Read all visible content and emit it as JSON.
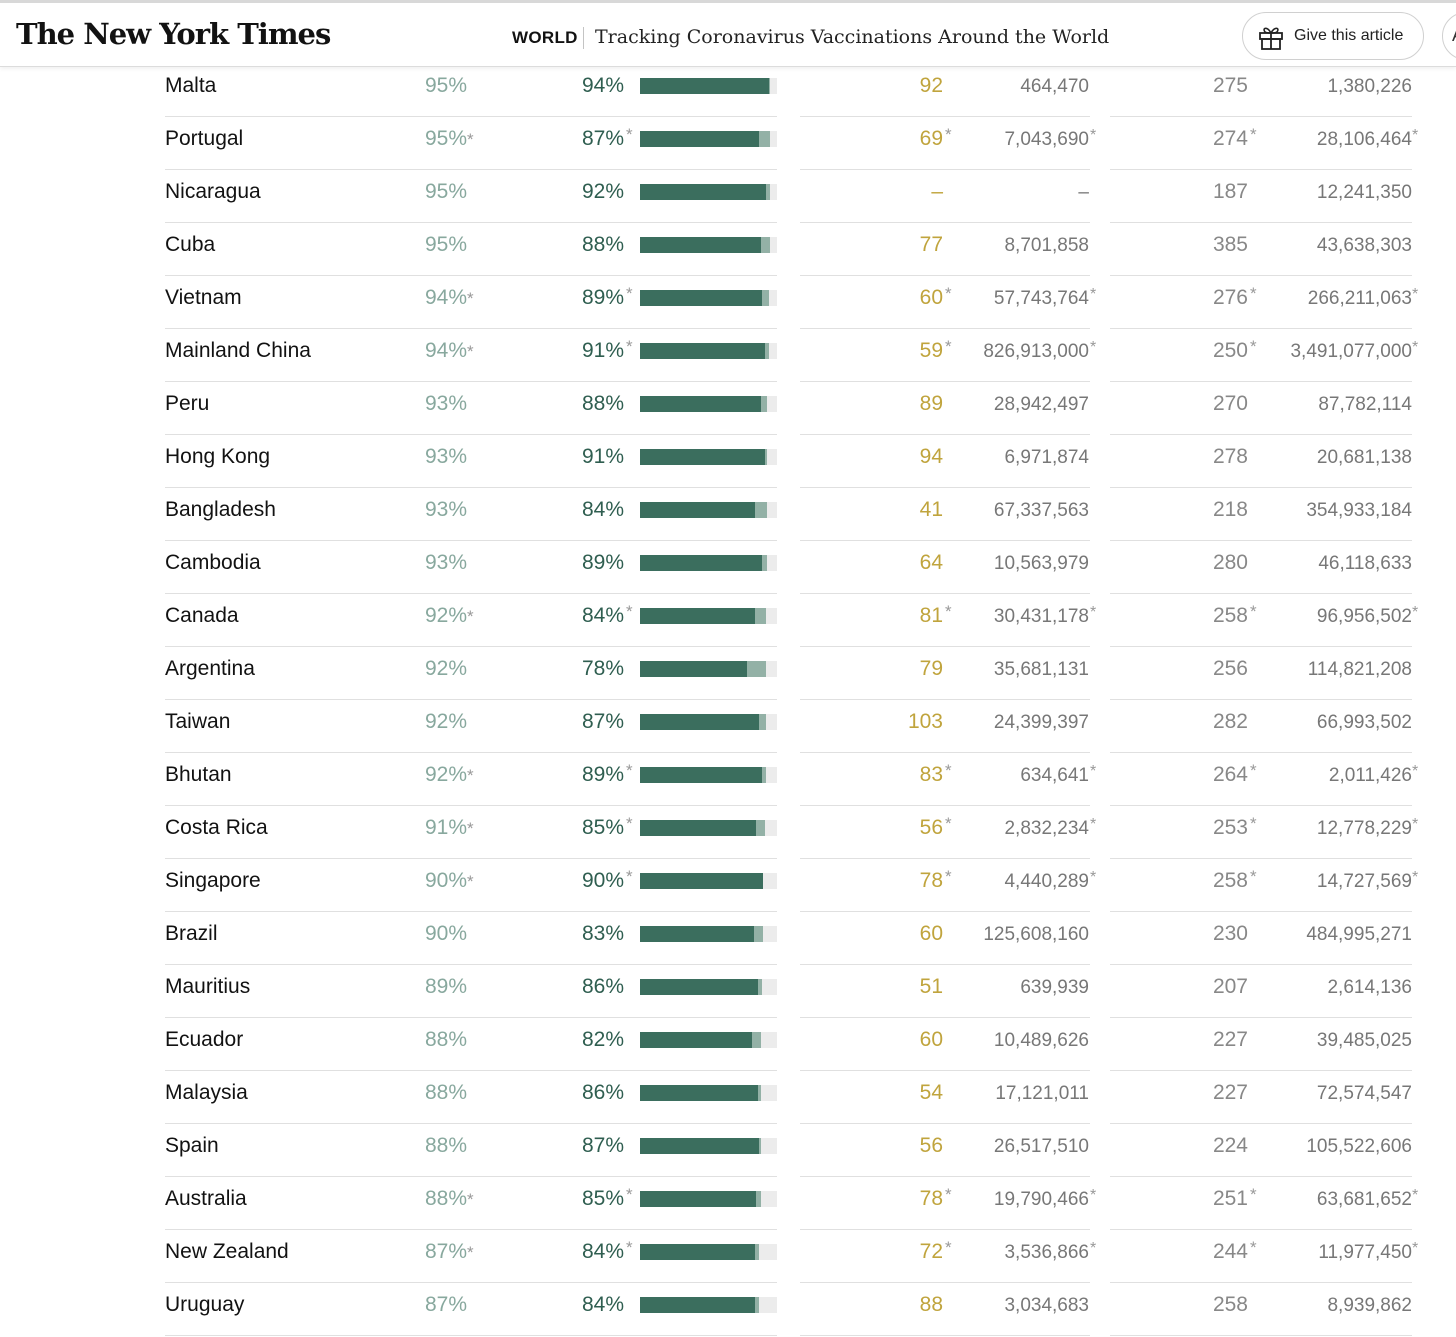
{
  "header": {
    "logo_text": "The New York Times",
    "section": "WORLD",
    "headline": "Tracking Coronavirus Vaccinations Around the World",
    "gift_label": "Give this article",
    "edge_button_glyph": "A"
  },
  "colors": {
    "first_dose_text": "#88a89e",
    "full_dose_text": "#2f5e50",
    "bar_full": "#3b6e5e",
    "bar_partial": "#93b1a6",
    "daily_rate": "#c0a43d"
  },
  "rows": [
    {
      "country": "Malta",
      "first_pct": "95%",
      "first_star": "",
      "full_pct": "94%",
      "full_star": "",
      "bar_full": 0.94,
      "bar_partial": 0.95,
      "daily": "92",
      "daily_star": "",
      "doses_a": "464,470",
      "doses_a_star": "",
      "per100": "275",
      "per100_star": "",
      "doses_b": "1,380,226",
      "doses_b_star": ""
    },
    {
      "country": "Portugal",
      "first_pct": "95%",
      "first_star": "*",
      "full_pct": "87%",
      "full_star": "*",
      "bar_full": 0.87,
      "bar_partial": 0.95,
      "daily": "69",
      "daily_star": "*",
      "doses_a": "7,043,690",
      "doses_a_star": "*",
      "per100": "274",
      "per100_star": "*",
      "doses_b": "28,106,464",
      "doses_b_star": "*"
    },
    {
      "country": "Nicaragua",
      "first_pct": "95%",
      "first_star": "",
      "full_pct": "92%",
      "full_star": "",
      "bar_full": 0.92,
      "bar_partial": 0.95,
      "daily": "–",
      "daily_star": "",
      "doses_a": "–",
      "doses_a_star": "",
      "per100": "187",
      "per100_star": "",
      "doses_b": "12,241,350",
      "doses_b_star": ""
    },
    {
      "country": "Cuba",
      "first_pct": "95%",
      "first_star": "",
      "full_pct": "88%",
      "full_star": "",
      "bar_full": 0.88,
      "bar_partial": 0.95,
      "daily": "77",
      "daily_star": "",
      "doses_a": "8,701,858",
      "doses_a_star": "",
      "per100": "385",
      "per100_star": "",
      "doses_b": "43,638,303",
      "doses_b_star": ""
    },
    {
      "country": "Vietnam",
      "first_pct": "94%",
      "first_star": "*",
      "full_pct": "89%",
      "full_star": "*",
      "bar_full": 0.89,
      "bar_partial": 0.94,
      "daily": "60",
      "daily_star": "*",
      "doses_a": "57,743,764",
      "doses_a_star": "*",
      "per100": "276",
      "per100_star": "*",
      "doses_b": "266,211,063",
      "doses_b_star": "*"
    },
    {
      "country": "Mainland China",
      "first_pct": "94%",
      "first_star": "*",
      "full_pct": "91%",
      "full_star": "*",
      "bar_full": 0.91,
      "bar_partial": 0.94,
      "daily": "59",
      "daily_star": "*",
      "doses_a": "826,913,000",
      "doses_a_star": "*",
      "per100": "250",
      "per100_star": "*",
      "doses_b": "3,491,077,000",
      "doses_b_star": "*"
    },
    {
      "country": "Peru",
      "first_pct": "93%",
      "first_star": "",
      "full_pct": "88%",
      "full_star": "",
      "bar_full": 0.88,
      "bar_partial": 0.93,
      "daily": "89",
      "daily_star": "",
      "doses_a": "28,942,497",
      "doses_a_star": "",
      "per100": "270",
      "per100_star": "",
      "doses_b": "87,782,114",
      "doses_b_star": ""
    },
    {
      "country": "Hong Kong",
      "first_pct": "93%",
      "first_star": "",
      "full_pct": "91%",
      "full_star": "",
      "bar_full": 0.91,
      "bar_partial": 0.93,
      "daily": "94",
      "daily_star": "",
      "doses_a": "6,971,874",
      "doses_a_star": "",
      "per100": "278",
      "per100_star": "",
      "doses_b": "20,681,138",
      "doses_b_star": ""
    },
    {
      "country": "Bangladesh",
      "first_pct": "93%",
      "first_star": "",
      "full_pct": "84%",
      "full_star": "",
      "bar_full": 0.84,
      "bar_partial": 0.93,
      "daily": "41",
      "daily_star": "",
      "doses_a": "67,337,563",
      "doses_a_star": "",
      "per100": "218",
      "per100_star": "",
      "doses_b": "354,933,184",
      "doses_b_star": ""
    },
    {
      "country": "Cambodia",
      "first_pct": "93%",
      "first_star": "",
      "full_pct": "89%",
      "full_star": "",
      "bar_full": 0.89,
      "bar_partial": 0.93,
      "daily": "64",
      "daily_star": "",
      "doses_a": "10,563,979",
      "doses_a_star": "",
      "per100": "280",
      "per100_star": "",
      "doses_b": "46,118,633",
      "doses_b_star": ""
    },
    {
      "country": "Canada",
      "first_pct": "92%",
      "first_star": "*",
      "full_pct": "84%",
      "full_star": "*",
      "bar_full": 0.84,
      "bar_partial": 0.92,
      "daily": "81",
      "daily_star": "*",
      "doses_a": "30,431,178",
      "doses_a_star": "*",
      "per100": "258",
      "per100_star": "*",
      "doses_b": "96,956,502",
      "doses_b_star": "*"
    },
    {
      "country": "Argentina",
      "first_pct": "92%",
      "first_star": "",
      "full_pct": "78%",
      "full_star": "",
      "bar_full": 0.78,
      "bar_partial": 0.92,
      "daily": "79",
      "daily_star": "",
      "doses_a": "35,681,131",
      "doses_a_star": "",
      "per100": "256",
      "per100_star": "",
      "doses_b": "114,821,208",
      "doses_b_star": ""
    },
    {
      "country": "Taiwan",
      "first_pct": "92%",
      "first_star": "",
      "full_pct": "87%",
      "full_star": "",
      "bar_full": 0.87,
      "bar_partial": 0.92,
      "daily": "103",
      "daily_star": "",
      "doses_a": "24,399,397",
      "doses_a_star": "",
      "per100": "282",
      "per100_star": "",
      "doses_b": "66,993,502",
      "doses_b_star": ""
    },
    {
      "country": "Bhutan",
      "first_pct": "92%",
      "first_star": "*",
      "full_pct": "89%",
      "full_star": "*",
      "bar_full": 0.89,
      "bar_partial": 0.92,
      "daily": "83",
      "daily_star": "*",
      "doses_a": "634,641",
      "doses_a_star": "*",
      "per100": "264",
      "per100_star": "*",
      "doses_b": "2,011,426",
      "doses_b_star": "*"
    },
    {
      "country": "Costa Rica",
      "first_pct": "91%",
      "first_star": "*",
      "full_pct": "85%",
      "full_star": "*",
      "bar_full": 0.85,
      "bar_partial": 0.91,
      "daily": "56",
      "daily_star": "*",
      "doses_a": "2,832,234",
      "doses_a_star": "*",
      "per100": "253",
      "per100_star": "*",
      "doses_b": "12,778,229",
      "doses_b_star": "*"
    },
    {
      "country": "Singapore",
      "first_pct": "90%",
      "first_star": "*",
      "full_pct": "90%",
      "full_star": "*",
      "bar_full": 0.9,
      "bar_partial": 0.9,
      "daily": "78",
      "daily_star": "*",
      "doses_a": "4,440,289",
      "doses_a_star": "*",
      "per100": "258",
      "per100_star": "*",
      "doses_b": "14,727,569",
      "doses_b_star": "*"
    },
    {
      "country": "Brazil",
      "first_pct": "90%",
      "first_star": "",
      "full_pct": "83%",
      "full_star": "",
      "bar_full": 0.83,
      "bar_partial": 0.9,
      "daily": "60",
      "daily_star": "",
      "doses_a": "125,608,160",
      "doses_a_star": "",
      "per100": "230",
      "per100_star": "",
      "doses_b": "484,995,271",
      "doses_b_star": ""
    },
    {
      "country": "Mauritius",
      "first_pct": "89%",
      "first_star": "",
      "full_pct": "86%",
      "full_star": "",
      "bar_full": 0.86,
      "bar_partial": 0.89,
      "daily": "51",
      "daily_star": "",
      "doses_a": "639,939",
      "doses_a_star": "",
      "per100": "207",
      "per100_star": "",
      "doses_b": "2,614,136",
      "doses_b_star": ""
    },
    {
      "country": "Ecuador",
      "first_pct": "88%",
      "first_star": "",
      "full_pct": "82%",
      "full_star": "",
      "bar_full": 0.82,
      "bar_partial": 0.88,
      "daily": "60",
      "daily_star": "",
      "doses_a": "10,489,626",
      "doses_a_star": "",
      "per100": "227",
      "per100_star": "",
      "doses_b": "39,485,025",
      "doses_b_star": ""
    },
    {
      "country": "Malaysia",
      "first_pct": "88%",
      "first_star": "",
      "full_pct": "86%",
      "full_star": "",
      "bar_full": 0.86,
      "bar_partial": 0.88,
      "daily": "54",
      "daily_star": "",
      "doses_a": "17,121,011",
      "doses_a_star": "",
      "per100": "227",
      "per100_star": "",
      "doses_b": "72,574,547",
      "doses_b_star": ""
    },
    {
      "country": "Spain",
      "first_pct": "88%",
      "first_star": "",
      "full_pct": "87%",
      "full_star": "",
      "bar_full": 0.87,
      "bar_partial": 0.88,
      "daily": "56",
      "daily_star": "",
      "doses_a": "26,517,510",
      "doses_a_star": "",
      "per100": "224",
      "per100_star": "",
      "doses_b": "105,522,606",
      "doses_b_star": ""
    },
    {
      "country": "Australia",
      "first_pct": "88%",
      "first_star": "*",
      "full_pct": "85%",
      "full_star": "*",
      "bar_full": 0.85,
      "bar_partial": 0.88,
      "daily": "78",
      "daily_star": "*",
      "doses_a": "19,790,466",
      "doses_a_star": "*",
      "per100": "251",
      "per100_star": "*",
      "doses_b": "63,681,652",
      "doses_b_star": "*"
    },
    {
      "country": "New Zealand",
      "first_pct": "87%",
      "first_star": "*",
      "full_pct": "84%",
      "full_star": "*",
      "bar_full": 0.84,
      "bar_partial": 0.87,
      "daily": "72",
      "daily_star": "*",
      "doses_a": "3,536,866",
      "doses_a_star": "*",
      "per100": "244",
      "per100_star": "*",
      "doses_b": "11,977,450",
      "doses_b_star": "*"
    },
    {
      "country": "Uruguay",
      "first_pct": "87%",
      "first_star": "",
      "full_pct": "84%",
      "full_star": "",
      "bar_full": 0.84,
      "bar_partial": 0.87,
      "daily": "88",
      "daily_star": "",
      "doses_a": "3,034,683",
      "doses_a_star": "",
      "per100": "258",
      "per100_star": "",
      "doses_b": "8,939,862",
      "doses_b_star": ""
    }
  ]
}
